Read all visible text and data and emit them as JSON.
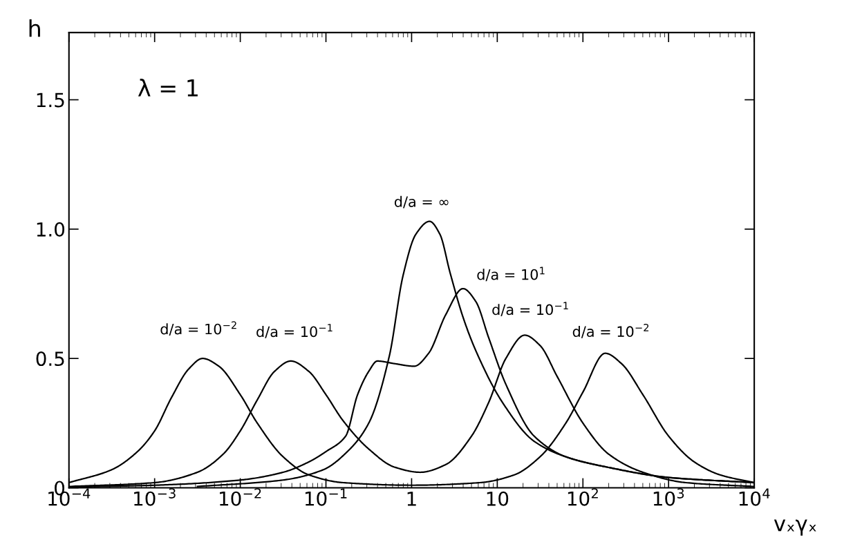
{
  "chart_data": {
    "type": "line",
    "xlabel": "vₓγₓ",
    "ylabel": "h",
    "log": "x",
    "grid": false,
    "legend": false,
    "marker": "none",
    "line_style": "solid",
    "xlim": [
      0.0001,
      10000
    ],
    "ylim": [
      0,
      1.76
    ],
    "xticks": [
      {
        "value": 0.0001,
        "label": "10$^{−4}$"
      },
      {
        "value": 0.001,
        "label": "10$^{−3}$"
      },
      {
        "value": 0.01,
        "label": "10$^{−2}$"
      },
      {
        "value": 0.1,
        "label": "10$^{−1}$"
      },
      1,
      10,
      {
        "value": 100,
        "label": "10$^{2}$"
      },
      {
        "value": 1000,
        "label": "10$^{3}$"
      },
      {
        "value": 10000,
        "label": "10$^{4}$"
      }
    ],
    "yticks": [
      0,
      0.5,
      {
        "value": 1.0,
        "label": "1.0"
      },
      1.5
    ],
    "series": [
      {
        "color": "#000000",
        "x": [
          0.0001,
          0.000316,
          0.000631,
          0.001,
          0.00158,
          0.00251,
          0.00363,
          0.00562,
          0.01,
          0.0158,
          0.0316,
          0.0631,
          0.158,
          1,
          6.31,
          15.8,
          31.6,
          63.1,
          100,
          182,
          282,
          501,
          1000,
          1995,
          3981,
          10000
        ],
        "values": [
          0.02,
          0.07,
          0.14,
          0.22,
          0.35,
          0.46,
          0.5,
          0.47,
          0.36,
          0.25,
          0.12,
          0.05,
          0.02,
          0.01,
          0.02,
          0.05,
          0.12,
          0.25,
          0.37,
          0.52,
          0.48,
          0.36,
          0.2,
          0.1,
          0.05,
          0.02
        ]
      },
      {
        "color": "#000000",
        "x": [
          0.0001,
          0.001,
          0.00316,
          0.00631,
          0.01,
          0.0158,
          0.0251,
          0.0389,
          0.0631,
          0.1,
          0.158,
          0.316,
          0.631,
          1.26,
          2.51,
          5.01,
          7.94,
          12.6,
          20.9,
          31.6,
          50.1,
          100,
          200,
          501,
          1585,
          10000
        ],
        "values": [
          0.005,
          0.02,
          0.06,
          0.13,
          0.22,
          0.34,
          0.45,
          0.49,
          0.45,
          0.36,
          0.26,
          0.15,
          0.08,
          0.06,
          0.09,
          0.2,
          0.33,
          0.5,
          0.59,
          0.55,
          0.43,
          0.25,
          0.13,
          0.06,
          0.02,
          0.005
        ]
      },
      {
        "color": "#000000",
        "x": [
          0.00316,
          0.0316,
          0.0933,
          0.178,
          0.316,
          0.55,
          0.794,
          1.12,
          1.62,
          2.14,
          2.82,
          3.98,
          5.62,
          11.5,
          26.9,
          63.1,
          191,
          1000,
          10000
        ],
        "values": [
          0.005,
          0.03,
          0.07,
          0.14,
          0.25,
          0.51,
          0.82,
          0.98,
          1.03,
          0.98,
          0.83,
          0.66,
          0.53,
          0.33,
          0.18,
          0.12,
          0.08,
          0.04,
          0.02
        ]
      },
      {
        "color": "#000000",
        "x": [
          0.0001,
          0.001,
          0.01,
          0.0316,
          0.0631,
          0.1,
          0.17,
          0.234,
          0.316,
          0.398,
          0.631,
          1.07,
          1.58,
          2.51,
          3.98,
          5.62,
          7.94,
          12.6,
          26.9,
          63.1,
          191,
          1000,
          10000
        ],
        "values": [
          0.003,
          0.01,
          0.03,
          0.06,
          0.1,
          0.14,
          0.2,
          0.36,
          0.45,
          0.49,
          0.48,
          0.47,
          0.52,
          0.67,
          0.77,
          0.72,
          0.58,
          0.4,
          0.2,
          0.12,
          0.08,
          0.04,
          0.02
        ]
      }
    ],
    "annotations": [
      "λ = 1",
      {
        "text": "d/a = 10$^{−2}$",
        "x": 0.00363,
        "y": 0.5
      },
      {
        "text": "d/a = 10$^{−1}$",
        "x": 0.0389,
        "y": 0.49
      },
      {
        "text": "d/a = ∞",
        "x": 1.62,
        "y": 1.03
      },
      {
        "text": "d/a = 10$^{1}$",
        "x": 3.98,
        "y": 0.77
      },
      {
        "text": "d/a = 10$^{−1}$",
        "x": 20.9,
        "y": 0.59
      },
      {
        "text": "d/a = 10$^{−2}$",
        "x": 182,
        "y": 0.52
      }
    ]
  }
}
